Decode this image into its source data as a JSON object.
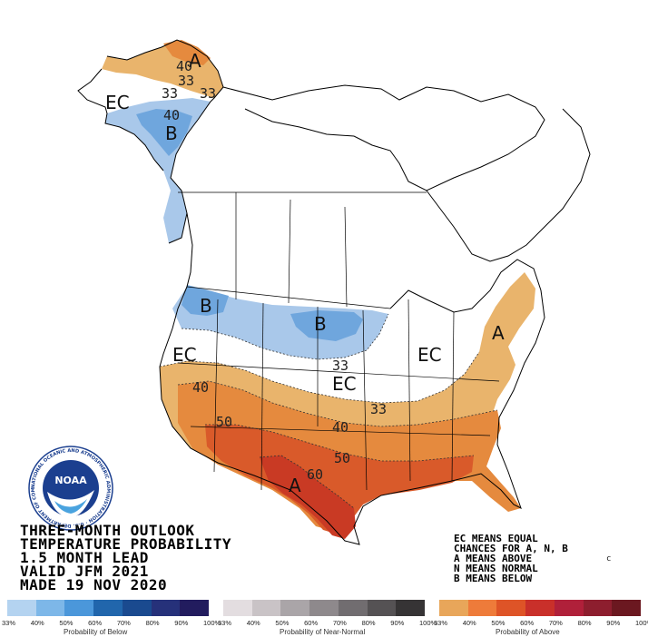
{
  "title_lines": [
    "THREE-MONTH OUTLOOK",
    "TEMPERATURE PROBABILITY",
    "1.5 MONTH LEAD",
    "VALID JFM 2021",
    "MADE 19 NOV 2020"
  ],
  "legend_note_lines": [
    "EC MEANS EQUAL",
    "CHANCES FOR A, N, B",
    "A MEANS ABOVE",
    "N MEANS NORMAL",
    "B MEANS BELOW"
  ],
  "map_labels": {
    "ec_alaska": "EC",
    "a_alaska": "A",
    "b_alaska": "B",
    "b_northwest": "B",
    "b_dakotas": "B",
    "ec_west": "EC",
    "ec_central": "EC",
    "ec_lakes": "EC",
    "a_east": "A",
    "a_texas": "A",
    "c_mark": "c"
  },
  "contour_labels": {
    "ak_40": "40",
    "ak_33a": "33",
    "ak_33b": "33",
    "ak_b40": "40",
    "us_33a": "33",
    "us_33b": "33",
    "us_40a": "40",
    "us_40b": "40",
    "us_50a": "50",
    "us_50b": "50",
    "us_60": "60"
  },
  "noaa_logo": {
    "center_text": "NOAA",
    "ring_text": "NATIONAL OCEANIC AND ATMOSPHERIC ADMINISTRATION · U.S. DEPARTMENT OF COMMERCE"
  },
  "scales": [
    {
      "title": "Probability of Below",
      "ticks": [
        "33%",
        "40%",
        "50%",
        "60%",
        "70%",
        "80%",
        "90%",
        "100%"
      ],
      "colors": [
        "#b4d3f0",
        "#7db7e8",
        "#4b97da",
        "#2166ac",
        "#1a4a8f",
        "#26317a",
        "#221c5e"
      ]
    },
    {
      "title": "Probability of Near-Normal",
      "ticks": [
        "33%",
        "40%",
        "50%",
        "60%",
        "70%",
        "80%",
        "90%",
        "100%"
      ],
      "colors": [
        "#e3dde0",
        "#c9c3c6",
        "#aaa5a8",
        "#8e898c",
        "#716d70",
        "#555254",
        "#363435"
      ]
    },
    {
      "title": "Probability of Above",
      "ticks": [
        "33%",
        "40%",
        "50%",
        "60%",
        "70%",
        "80%",
        "90%",
        "100%"
      ],
      "colors": [
        "#e8a65a",
        "#ee7b3a",
        "#de5427",
        "#c9302a",
        "#b0203a",
        "#8d1e2e",
        "#6b1820"
      ]
    }
  ],
  "category_colors": {
    "above_33": "#e9b46c",
    "above_40": "#e58a3e",
    "above_50": "#d95a2a",
    "above_60": "#c93a24",
    "below_33": "#a9c8ea",
    "below_40": "#6fa6dd"
  }
}
